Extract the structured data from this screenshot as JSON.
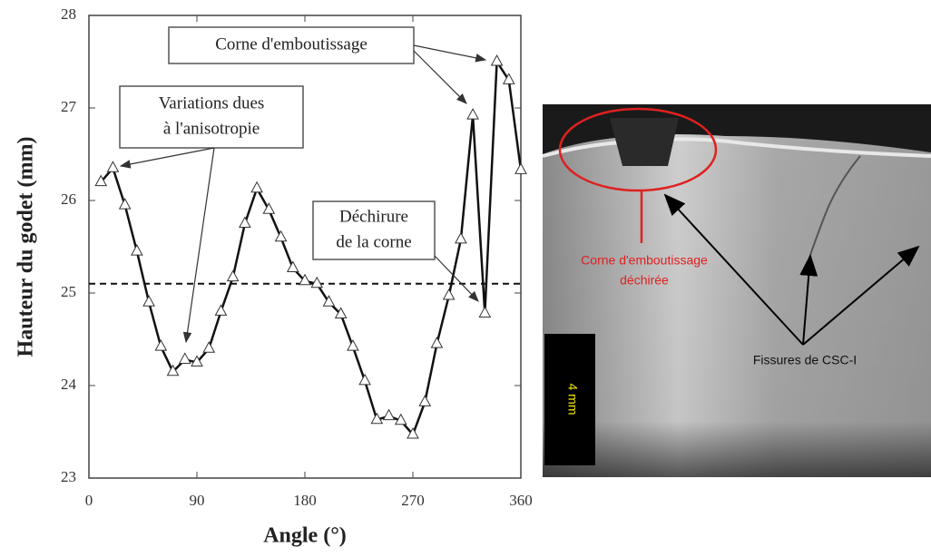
{
  "chart_data": {
    "type": "line",
    "x": [
      10,
      20,
      30,
      40,
      50,
      60,
      70,
      80,
      90,
      100,
      110,
      120,
      130,
      140,
      150,
      160,
      170,
      180,
      190,
      200,
      210,
      220,
      230,
      240,
      250,
      260,
      270,
      280,
      290,
      300,
      310,
      320,
      330,
      340,
      350,
      360
    ],
    "values": [
      26.2,
      26.35,
      25.95,
      25.45,
      24.9,
      24.42,
      24.15,
      24.28,
      24.25,
      24.4,
      24.8,
      25.17,
      25.75,
      26.13,
      25.9,
      25.6,
      25.27,
      25.13,
      25.1,
      24.9,
      24.77,
      24.42,
      24.05,
      23.63,
      23.67,
      23.62,
      23.47,
      23.82,
      24.45,
      24.97,
      25.58,
      26.92,
      24.78,
      27.5,
      27.3,
      26.33
    ],
    "color": "#111111",
    "xlabel": "Angle (°)",
    "ylabel": "Hauteur du godet (mm)",
    "xlim": [
      0,
      360
    ],
    "xticks": [
      0,
      90,
      180,
      270,
      360
    ],
    "ylim": [
      23,
      28
    ],
    "yticks": [
      23,
      24,
      25,
      26,
      27,
      28
    ],
    "reference_line": 25.1,
    "annotations": [
      [
        "Corne d'emboutissage"
      ],
      [
        "Variations dues",
        "à l'anisotropie"
      ],
      [
        "Déchirure",
        "de la corne"
      ]
    ]
  },
  "photo": {
    "labels": [
      [
        "Corne d'emboutissage",
        "déchirée"
      ],
      [
        "Fissures de CSC-I"
      ],
      [
        "4 mm"
      ]
    ]
  }
}
